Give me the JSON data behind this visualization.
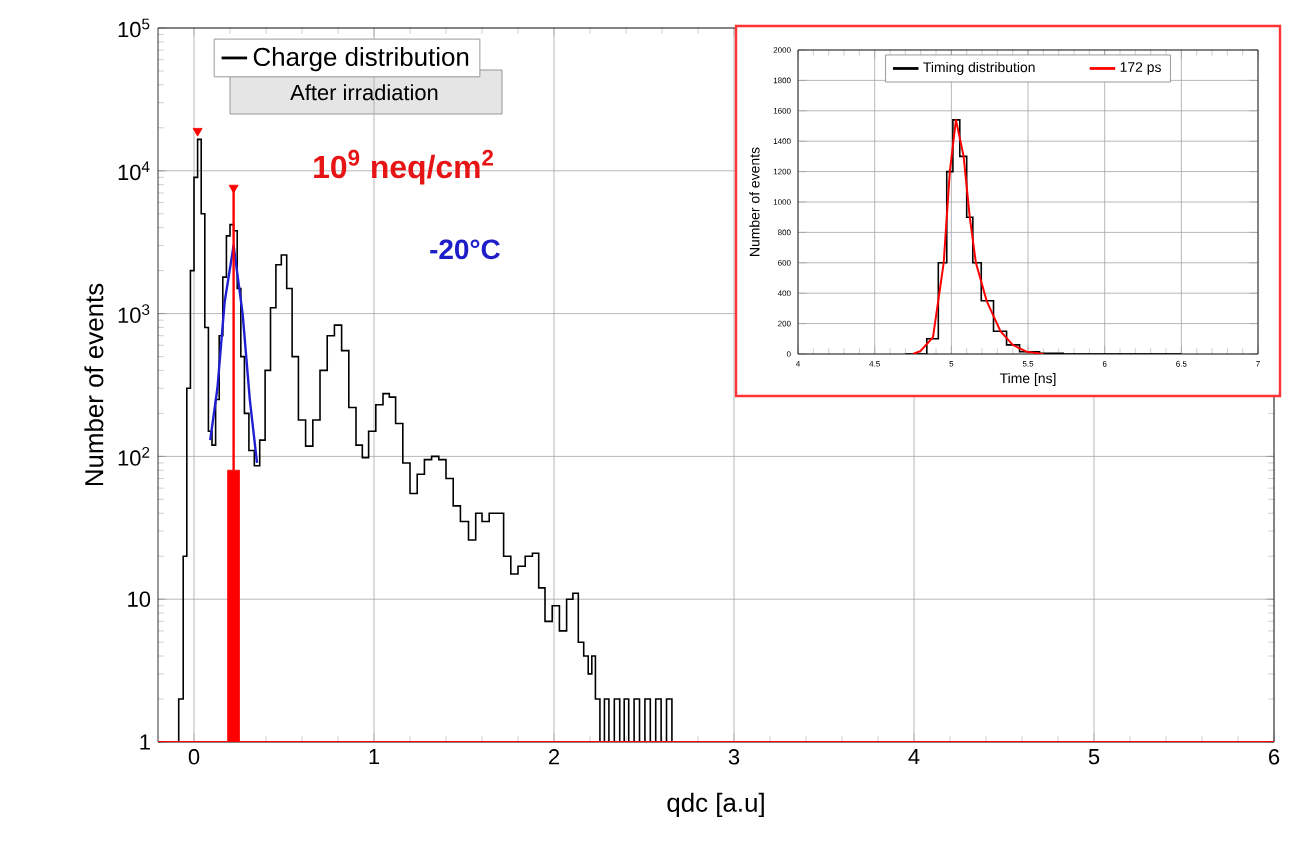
{
  "chart_data": [
    {
      "type": "step",
      "xlabel": "qdc [a.u]",
      "ylabel": "Number of events",
      "log": true,
      "grid": true,
      "legend": "top left",
      "xlim": [
        -0.2,
        6
      ],
      "ylim": [
        1,
        100000
      ],
      "xticks": [
        0,
        1,
        2,
        3,
        4,
        5,
        6
      ],
      "yticks": [
        {
          "value": 1,
          "label": "1"
        },
        {
          "value": 10,
          "label": "10"
        },
        {
          "value": 100,
          "label": "10$^{2}$"
        },
        {
          "value": 1000,
          "label": "10$^{3}$"
        },
        {
          "value": 10000,
          "label": "10$^{4}$"
        },
        {
          "value": 100000,
          "label": "10$^{5}$"
        }
      ],
      "annotations": [
        "After irradiation",
        "10$^{9}$ neq/cm$^{2}$",
        "-20°C"
      ],
      "series": [
        {
          "name": "Charge distribution",
          "color": "#000000",
          "x": [
            -0.1,
            -0.07,
            -0.05,
            -0.03,
            -0.01,
            0.01,
            0.03,
            0.05,
            0.07,
            0.09,
            0.11,
            0.13,
            0.15,
            0.17,
            0.19,
            0.21,
            0.23,
            0.25,
            0.27,
            0.29,
            0.32,
            0.35,
            0.38,
            0.41,
            0.44,
            0.47,
            0.5,
            0.53,
            0.56,
            0.6,
            0.64,
            0.68,
            0.72,
            0.76,
            0.8,
            0.84,
            0.88,
            0.92,
            0.95,
            0.99,
            1.03,
            1.07,
            1.1,
            1.14,
            1.18,
            1.22,
            1.26,
            1.3,
            1.34,
            1.38,
            1.42,
            1.46,
            1.5,
            1.55,
            1.58,
            1.62,
            1.66,
            1.7,
            1.74,
            1.78,
            1.82,
            1.86,
            1.9,
            1.93,
            1.97,
            2.01,
            2.05,
            2.09,
            2.12,
            2.15,
            2.18,
            2.2,
            2.22,
            2.24,
            2.27,
            2.29,
            2.32,
            2.35,
            2.38,
            2.4,
            2.43,
            2.46,
            2.49,
            2.52,
            2.55,
            2.58,
            2.61,
            2.64,
            2.67
          ],
          "values": [
            1,
            2,
            20,
            300,
            2000,
            9000,
            16600,
            5000,
            800,
            150,
            120,
            250,
            700,
            1800,
            3500,
            4200,
            3800,
            1500,
            500,
            200,
            110,
            86,
            130,
            400,
            1100,
            2200,
            2570,
            1500,
            500,
            180,
            118,
            180,
            400,
            700,
            830,
            550,
            220,
            120,
            98,
            150,
            230,
            275,
            260,
            170,
            90,
            55,
            75,
            95,
            100,
            95,
            70,
            45,
            35,
            26,
            40,
            35,
            40,
            40,
            20,
            15,
            17,
            20,
            21,
            12,
            7,
            9,
            6,
            10,
            11,
            5,
            4,
            3,
            4,
            2,
            1,
            2,
            1,
            2,
            1,
            2,
            1,
            2,
            1,
            2,
            1,
            2,
            1,
            2,
            1
          ]
        },
        {
          "type": "line",
          "color": "#1f1fd0",
          "x": [
            0.09,
            0.13,
            0.17,
            0.22,
            0.27,
            0.31,
            0.35
          ],
          "values": [
            130,
            300,
            1200,
            3000,
            1000,
            250,
            90
          ]
        },
        {
          "type": "bar",
          "color": "#ff0000",
          "x": [
            0.22
          ],
          "values": [
            80
          ],
          "errors": [
            [
              80,
              7600
            ]
          ]
        },
        {
          "type": "scatter",
          "marker": "triangle",
          "color": "#ff0000",
          "x": [
            0.02,
            0.22
          ],
          "values": [
            19000,
            7600
          ]
        }
      ]
    },
    {
      "type": "step",
      "xlabel": "Time [ns]",
      "ylabel": "Number of events",
      "grid": true,
      "legend": "top",
      "xlim": [
        4,
        7
      ],
      "ylim": [
        0,
        2000
      ],
      "xticks": [
        4,
        4.5,
        5,
        5.5,
        6,
        6.5,
        7
      ],
      "yticks": [
        0,
        200,
        400,
        600,
        800,
        1000,
        1200,
        1400,
        1600,
        1800,
        2000
      ],
      "series": [
        {
          "name": "Timing distribution",
          "color": "#000000",
          "x": [
            4.7,
            4.8,
            4.88,
            4.95,
            4.99,
            5.03,
            5.08,
            5.12,
            5.16,
            5.23,
            5.32,
            5.4,
            5.49,
            5.66,
            5.8,
            6.5
          ],
          "values": [
            0,
            0,
            100,
            600,
            1200,
            1540,
            1300,
            900,
            600,
            350,
            150,
            60,
            15,
            5,
            0,
            0
          ]
        },
        {
          "name": "172 ps",
          "type": "line",
          "color": "#ff0000",
          "x": [
            4.75,
            4.8,
            4.88,
            4.95,
            4.99,
            5.03,
            5.08,
            5.12,
            5.16,
            5.23,
            5.32,
            5.4,
            5.49,
            5.6
          ],
          "values": [
            0,
            20,
            110,
            600,
            1200,
            1540,
            1300,
            900,
            600,
            350,
            150,
            60,
            15,
            0
          ]
        }
      ]
    }
  ]
}
